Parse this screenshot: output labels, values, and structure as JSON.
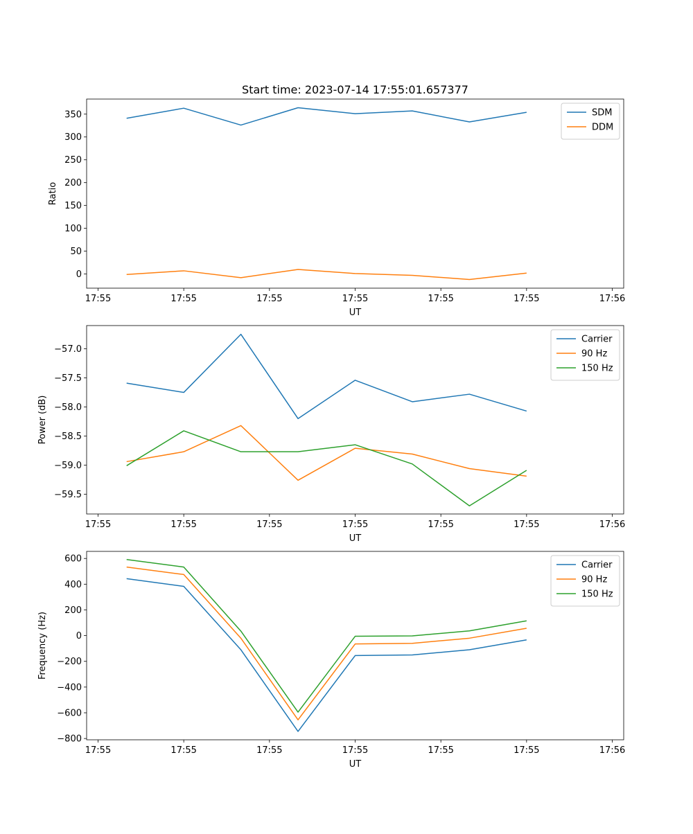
{
  "figure_title": "Start time: 2023-07-14 17:55:01.657377",
  "colors": {
    "c0": "#1f77b4",
    "c1": "#ff7f0e",
    "c2": "#2ca02c"
  },
  "chart_data": [
    {
      "type": "line",
      "title": "Start time: 2023-07-14 17:55:01.657377",
      "xlabel": "UT",
      "ylabel": "Ratio",
      "x": [
        0,
        1,
        2,
        3,
        4,
        5,
        6,
        7
      ],
      "xlim": [
        -0.7,
        8.7
      ],
      "xticks": [
        -0.5,
        1.0,
        2.5,
        4.0,
        5.5,
        7.0,
        8.5
      ],
      "xtick_labels": [
        "17:55",
        "17:55",
        "17:55",
        "17:55",
        "17:55",
        "17:55",
        "17:56"
      ],
      "ylim": [
        -31,
        383
      ],
      "yticks": [
        0,
        50,
        100,
        150,
        200,
        250,
        300,
        350
      ],
      "ytick_labels": [
        "0",
        "50",
        "100",
        "150",
        "200",
        "250",
        "300",
        "350"
      ],
      "legend": "top-right",
      "series": [
        {
          "name": "SDM",
          "color": "#1f77b4",
          "values": [
            341,
            363,
            326,
            364,
            351,
            357,
            333,
            354
          ]
        },
        {
          "name": "DDM",
          "color": "#ff7f0e",
          "values": [
            -1,
            7,
            -8,
            10,
            1,
            -3,
            -12,
            2
          ]
        }
      ]
    },
    {
      "type": "line",
      "xlabel": "UT",
      "ylabel": "Power (dB)",
      "x": [
        0,
        1,
        2,
        3,
        4,
        5,
        6,
        7
      ],
      "xlim": [
        -0.7,
        8.7
      ],
      "xticks": [
        -0.5,
        1.0,
        2.5,
        4.0,
        5.5,
        7.0,
        8.5
      ],
      "xtick_labels": [
        "17:55",
        "17:55",
        "17:55",
        "17:55",
        "17:55",
        "17:55",
        "17:56"
      ],
      "ylim": [
        -59.84,
        -56.6
      ],
      "yticks": [
        -59.5,
        -59.0,
        -58.5,
        -58.0,
        -57.5,
        -57.0
      ],
      "ytick_labels": [
        "−59.5",
        "−59.0",
        "−58.5",
        "−58.0",
        "−57.5",
        "−57.0"
      ],
      "legend": "top-right",
      "series": [
        {
          "name": "Carrier",
          "color": "#1f77b4",
          "values": [
            -57.59,
            -57.75,
            -56.75,
            -58.2,
            -57.54,
            -57.91,
            -57.78,
            -58.07
          ]
        },
        {
          "name": "90 Hz",
          "color": "#ff7f0e",
          "values": [
            -58.94,
            -58.77,
            -58.32,
            -59.26,
            -58.71,
            -58.81,
            -59.06,
            -59.19
          ]
        },
        {
          "name": "150 Hz",
          "color": "#2ca02c",
          "values": [
            -59.01,
            -58.41,
            -58.77,
            -58.77,
            -58.65,
            -58.98,
            -59.7,
            -59.09
          ]
        }
      ]
    },
    {
      "type": "line",
      "xlabel": "UT",
      "ylabel": "Frequency (Hz)",
      "x": [
        0,
        1,
        2,
        3,
        4,
        5,
        6,
        7
      ],
      "xlim": [
        -0.7,
        8.7
      ],
      "xticks": [
        -0.5,
        1.0,
        2.5,
        4.0,
        5.5,
        7.0,
        8.5
      ],
      "xtick_labels": [
        "17:55",
        "17:55",
        "17:55",
        "17:55",
        "17:55",
        "17:55",
        "17:56"
      ],
      "ylim": [
        -810,
        655
      ],
      "yticks": [
        -800,
        -600,
        -400,
        -200,
        0,
        200,
        400,
        600
      ],
      "ytick_labels": [
        "−800",
        "−600",
        "−400",
        "−200",
        "0",
        "200",
        "400",
        "600"
      ],
      "legend": "top-right",
      "series": [
        {
          "name": "Carrier",
          "color": "#1f77b4",
          "values": [
            443,
            383,
            -110,
            -745,
            -155,
            -150,
            -110,
            -33
          ]
        },
        {
          "name": "90 Hz",
          "color": "#ff7f0e",
          "values": [
            533,
            475,
            -20,
            -655,
            -65,
            -60,
            -20,
            57
          ]
        },
        {
          "name": "150 Hz",
          "color": "#2ca02c",
          "values": [
            592,
            533,
            35,
            -595,
            -5,
            -2,
            37,
            115
          ]
        }
      ]
    }
  ]
}
